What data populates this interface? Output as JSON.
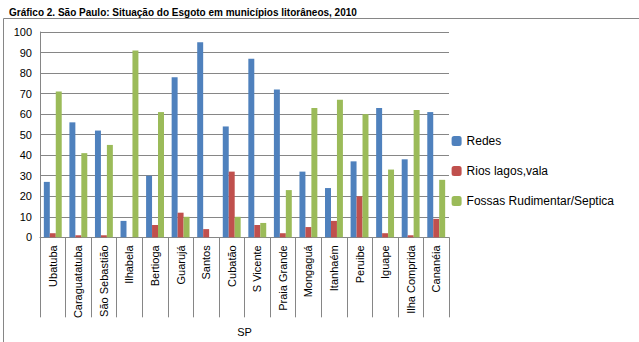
{
  "chart_data": {
    "type": "bar",
    "title": "Gráfico 2. São Paulo: Situação do Esgoto em municípios litorâneos, 2010",
    "xlabel": "SP",
    "categories": [
      "Ubatuba",
      "Caraguatatuba",
      "São Sebastião",
      "Ilhabela",
      "Bertioga",
      "Guarujá",
      "Santos",
      "Cubatão",
      "S Vicente",
      "Praia Grande",
      "Mongaguá",
      "Itanhaém",
      "Peruibe",
      "Iguape",
      "Ilha Comprida",
      "Cananéia"
    ],
    "series": [
      {
        "name": "Redes",
        "color": "#4f81bd",
        "values": [
          27,
          56,
          52,
          8,
          30,
          78,
          95,
          54,
          87,
          72,
          32,
          24,
          37,
          63,
          38,
          61
        ]
      },
      {
        "name": "Rios lagos,vala",
        "color": "#c0504d",
        "values": [
          2,
          1,
          1,
          0,
          6,
          12,
          4,
          32,
          6,
          2,
          5,
          8,
          20,
          2,
          1,
          9
        ]
      },
      {
        "name": "Fossas Rudimentar/Septica",
        "color": "#9bbb59",
        "values": [
          71,
          41,
          45,
          91,
          61,
          10,
          0,
          10,
          7,
          23,
          63,
          67,
          60,
          33,
          62,
          28
        ]
      }
    ],
    "ylim": [
      0,
      100
    ],
    "yticks": [
      0,
      10,
      20,
      30,
      40,
      50,
      60,
      70,
      80,
      90,
      100
    ],
    "grid": true,
    "legend": "right"
  }
}
